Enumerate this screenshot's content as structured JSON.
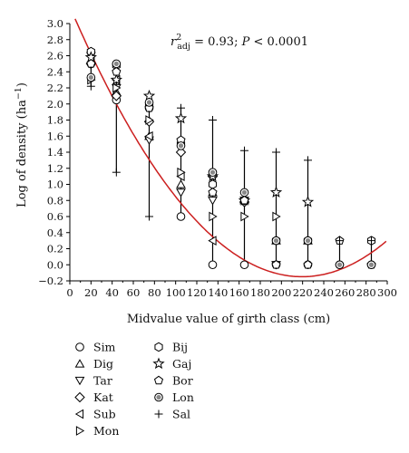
{
  "chart_data": {
    "type": "scatter",
    "xlabel": "Midvalue value of girth class (cm)",
    "ylabel": "Log of density (ha",
    "ylabel_sup": "−1",
    "ylabel_end": ")",
    "annotation": {
      "r": "r",
      "sup": "2",
      "sub": "adj",
      "rest": " = 0.93;  ",
      "p": "P",
      "prest": " < 0.0001"
    },
    "xlim": [
      0,
      300
    ],
    "ylim": [
      -0.2,
      3.0
    ],
    "xticks": [
      0,
      20,
      40,
      60,
      80,
      100,
      120,
      140,
      160,
      180,
      200,
      220,
      240,
      260,
      280,
      300
    ],
    "yticks": [
      -0.2,
      0.0,
      0.2,
      0.4,
      0.6,
      0.8,
      1.0,
      1.2,
      1.4,
      1.6,
      1.8,
      2.0,
      2.2,
      2.4,
      2.6,
      2.8,
      3.0
    ],
    "ytick_labels": [
      "−0.2",
      "0.0",
      "0.2",
      "0.4",
      "0.6",
      "0.8",
      "1.0",
      "1.2",
      "1.4",
      "1.6",
      "1.8",
      "2.0",
      "2.2",
      "2.4",
      "2.6",
      "2.8",
      "3.0"
    ],
    "fit_curve": {
      "coeffs": [
        3.21,
        -0.0306,
        6.97e-05
      ],
      "color": "#cc1f1f",
      "x_range": [
        5,
        300
      ]
    },
    "classes": [
      {
        "x": 20,
        "range": [
          2.22,
          2.68
        ]
      },
      {
        "x": 44,
        "range": [
          1.15,
          2.5
        ]
      },
      {
        "x": 75,
        "range": [
          0.6,
          2.1
        ]
      },
      {
        "x": 105,
        "range": [
          0.6,
          1.95
        ]
      },
      {
        "x": 135,
        "range": [
          0.0,
          1.8
        ]
      },
      {
        "x": 165,
        "range": [
          0.0,
          1.42
        ]
      },
      {
        "x": 195,
        "range": [
          0.0,
          1.4
        ]
      },
      {
        "x": 225,
        "range": [
          0.0,
          1.3
        ]
      },
      {
        "x": 255,
        "range": [
          0.0,
          0.3
        ]
      },
      {
        "x": 285,
        "range": [
          0.0,
          0.3
        ]
      }
    ],
    "series": [
      {
        "name": "Sim",
        "marker": "circle",
        "points": [
          [
            20,
            2.5
          ],
          [
            44,
            2.05
          ],
          [
            75,
            1.95
          ],
          [
            105,
            0.6
          ],
          [
            135,
            0.0
          ],
          [
            165,
            0.0
          ],
          [
            195,
            0.0
          ],
          [
            225,
            0.0
          ],
          [
            255,
            0.0
          ],
          [
            285,
            0.0
          ]
        ]
      },
      {
        "name": "Dig",
        "marker": "triangle-up",
        "points": [
          [
            20,
            2.55
          ],
          [
            44,
            2.15
          ],
          [
            75,
            1.6
          ],
          [
            105,
            1.0
          ],
          [
            135,
            0.9
          ],
          [
            165,
            0.8
          ],
          [
            195,
            0.3
          ],
          [
            225,
            0.3
          ]
        ]
      },
      {
        "name": "Tar",
        "marker": "triangle-down",
        "points": [
          [
            20,
            2.6
          ],
          [
            44,
            2.2
          ],
          [
            75,
            1.55
          ],
          [
            105,
            0.9
          ],
          [
            135,
            0.8
          ],
          [
            165,
            0.8
          ],
          [
            195,
            0.0
          ]
        ]
      },
      {
        "name": "Kat",
        "marker": "diamond",
        "points": [
          [
            20,
            2.5
          ],
          [
            44,
            2.1
          ],
          [
            75,
            1.78
          ],
          [
            105,
            1.4
          ],
          [
            135,
            1.1
          ],
          [
            165,
            0.78
          ]
        ]
      },
      {
        "name": "Sub",
        "marker": "triangle-left",
        "points": [
          [
            20,
            2.6
          ],
          [
            44,
            2.3
          ],
          [
            75,
            1.6
          ],
          [
            105,
            1.1
          ],
          [
            135,
            0.3
          ]
        ]
      },
      {
        "name": "Mon",
        "marker": "triangle-right",
        "points": [
          [
            20,
            2.3
          ],
          [
            44,
            2.2
          ],
          [
            75,
            1.8
          ],
          [
            105,
            1.15
          ],
          [
            135,
            0.6
          ],
          [
            165,
            0.6
          ],
          [
            195,
            0.6
          ]
        ]
      },
      {
        "name": "Bij",
        "marker": "hexagon",
        "points": [
          [
            20,
            2.65
          ],
          [
            44,
            2.48
          ],
          [
            75,
            2.0
          ],
          [
            105,
            1.5
          ],
          [
            135,
            1.0
          ],
          [
            165,
            0.8
          ],
          [
            195,
            0.3
          ],
          [
            225,
            0.3
          ],
          [
            285,
            0.3
          ]
        ]
      },
      {
        "name": "Gaj",
        "marker": "star",
        "points": [
          [
            20,
            2.58
          ],
          [
            44,
            2.3
          ],
          [
            75,
            2.1
          ],
          [
            105,
            1.82
          ],
          [
            135,
            1.1
          ],
          [
            165,
            0.8
          ],
          [
            195,
            0.9
          ],
          [
            225,
            0.78
          ]
        ]
      },
      {
        "name": "Bor",
        "marker": "pentagon",
        "points": [
          [
            20,
            2.5
          ],
          [
            44,
            2.4
          ],
          [
            75,
            1.95
          ],
          [
            105,
            1.55
          ],
          [
            135,
            0.9
          ],
          [
            165,
            0.8
          ],
          [
            195,
            0.0
          ],
          [
            225,
            0.0
          ],
          [
            255,
            0.3
          ],
          [
            285,
            0.0
          ]
        ]
      },
      {
        "name": "Lon",
        "marker": "circle-dot",
        "points": [
          [
            20,
            2.33
          ],
          [
            44,
            2.5
          ],
          [
            75,
            2.02
          ],
          [
            105,
            1.48
          ],
          [
            135,
            1.15
          ],
          [
            165,
            0.9
          ],
          [
            195,
            0.3
          ],
          [
            225,
            0.3
          ],
          [
            255,
            0.0
          ],
          [
            285,
            0.0
          ]
        ]
      },
      {
        "name": "Sal",
        "marker": "plus",
        "points": [
          [
            20,
            2.22
          ],
          [
            44,
            1.15
          ],
          [
            75,
            0.6
          ],
          [
            105,
            1.95
          ],
          [
            135,
            1.8
          ],
          [
            165,
            1.42
          ],
          [
            195,
            1.4
          ],
          [
            225,
            1.3
          ],
          [
            255,
            0.3
          ],
          [
            285,
            0.3
          ]
        ]
      }
    ],
    "grid": false,
    "legend_position": "bottom-left"
  }
}
